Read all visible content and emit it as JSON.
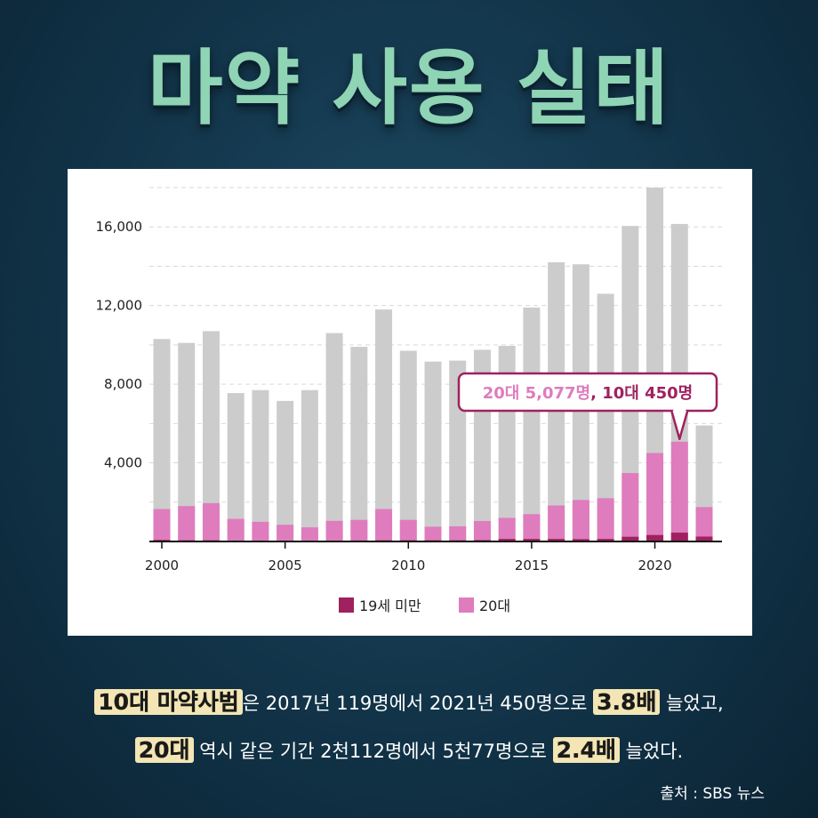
{
  "title": "마약 사용 실태",
  "chart_data": {
    "type": "bar",
    "stacked": true,
    "x": [
      2000,
      2001,
      2002,
      2003,
      2004,
      2005,
      2006,
      2007,
      2008,
      2009,
      2010,
      2011,
      2012,
      2013,
      2014,
      2015,
      2016,
      2017,
      2018,
      2019,
      2020,
      2021,
      2022
    ],
    "total": [
      10300,
      10100,
      10700,
      7550,
      7700,
      7150,
      7700,
      10600,
      9900,
      11800,
      9700,
      9150,
      9200,
      9750,
      9950,
      11900,
      14200,
      14100,
      12600,
      16050,
      18000,
      16150,
      5900
    ],
    "series": [
      {
        "name": "19세 미만",
        "values": [
          80,
          60,
          60,
          40,
          40,
          30,
          30,
          40,
          50,
          60,
          60,
          60,
          60,
          70,
          130,
          130,
          130,
          119,
          130,
          240,
          330,
          450,
          250
        ]
      },
      {
        "name": "20대",
        "values": [
          1650,
          1800,
          1950,
          1150,
          1000,
          850,
          720,
          1050,
          1100,
          1650,
          1100,
          750,
          770,
          1040,
          1200,
          1390,
          1830,
          2112,
          2200,
          3480,
          4500,
          5077,
          1750
        ]
      }
    ],
    "x_ticks": [
      "2000",
      "2005",
      "2010",
      "2015",
      "2020"
    ],
    "y_ticks": [
      "4,000",
      "8,000",
      "12,000",
      "16,000"
    ],
    "y_tick_values": [
      4000,
      8000,
      12000,
      16000
    ],
    "ylim": [
      0,
      18000
    ],
    "colors": {
      "total": "#cccccc",
      "teen": "#a0215f",
      "twenties": "#de7cbd",
      "callout": "#a0215f"
    },
    "callout": {
      "year": 2021,
      "part1": "20대 5,077명",
      "part2": ", 10대 450명"
    },
    "legend_position": "bottom-center",
    "grid": true
  },
  "caption": {
    "line1": {
      "hl1": "10대 마약사범",
      "text1": "은 2017년 119명에서 2021년 450명으로 ",
      "hl2": "3.8배",
      "text2": " 늘었고,"
    },
    "line2": {
      "hl1": "20대",
      "text1": " 역시 같은 기간 2천112명에서 5천77명으로 ",
      "hl2": "2.4배",
      "text2": " 늘었다."
    }
  },
  "source": "출처 : SBS 뉴스"
}
